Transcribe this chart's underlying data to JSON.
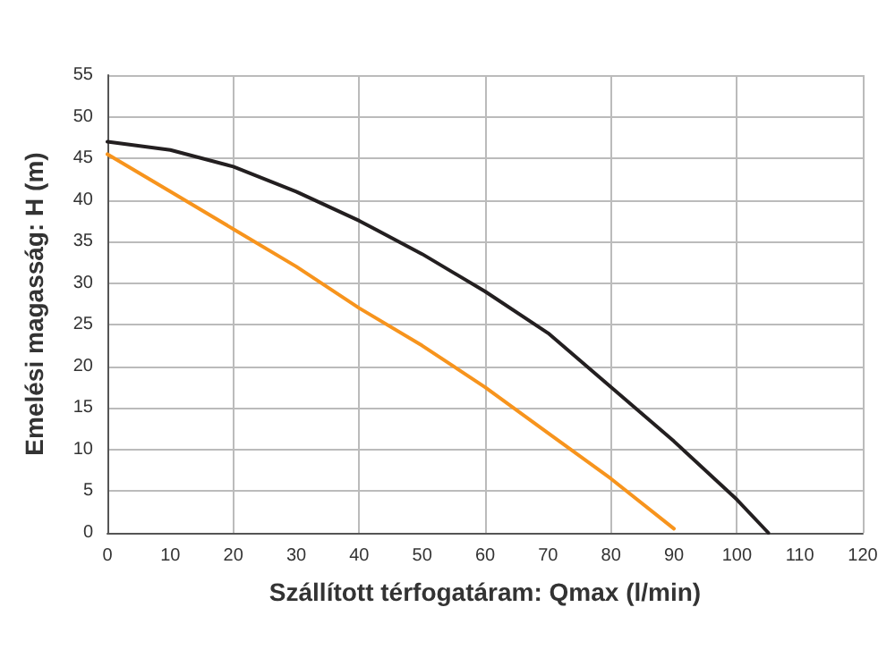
{
  "chart_data": {
    "type": "line",
    "xlabel": "Szállított térfogatáram: Qmax (l/min)",
    "ylabel": "Emelési magasság: H (m)",
    "series": [
      {
        "color": "#f7941d",
        "x": [
          0,
          10,
          20,
          30,
          40,
          50,
          60,
          70,
          80,
          90
        ],
        "values": [
          45.5,
          41,
          36.5,
          32,
          27,
          22.5,
          17.5,
          12,
          6.5,
          0.5
        ]
      },
      {
        "color": "#231f20",
        "x": [
          0,
          10,
          20,
          30,
          40,
          50,
          60,
          70,
          80,
          90,
          100,
          105
        ],
        "values": [
          47,
          46,
          44,
          41,
          37.5,
          33.5,
          29,
          24,
          17.5,
          11,
          4,
          0
        ]
      }
    ],
    "xlim": [
      0,
      120
    ],
    "xticks": [
      0,
      10,
      20,
      30,
      40,
      50,
      60,
      70,
      80,
      90,
      100,
      110,
      120
    ],
    "ylim": [
      0,
      55
    ],
    "yticks": [
      0,
      5,
      10,
      15,
      20,
      25,
      30,
      35,
      40,
      45,
      50,
      55
    ],
    "grid": true,
    "marker": "none",
    "line_style": "solid"
  }
}
